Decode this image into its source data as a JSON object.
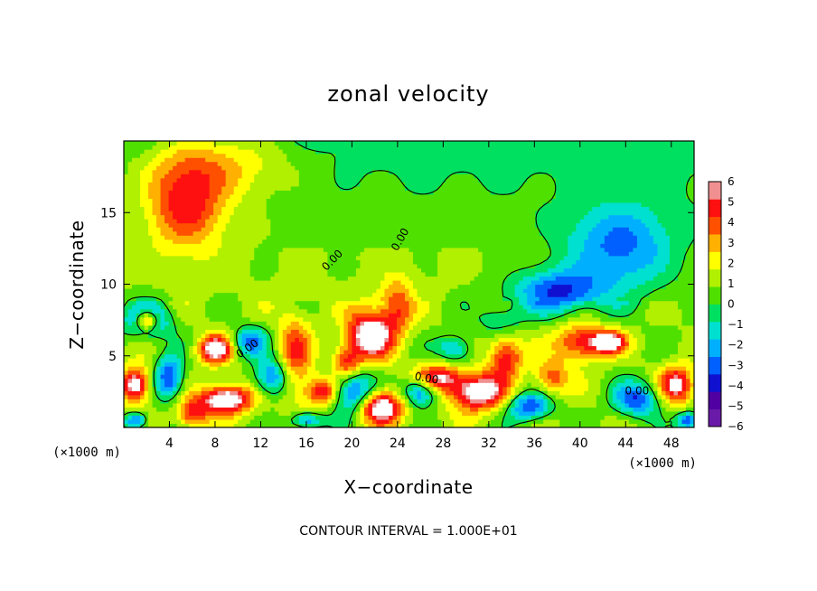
{
  "chart_data": {
    "type": "heatmap",
    "title": "zonal velocity",
    "xlabel": "X−coordinate",
    "ylabel": "Z−coordinate",
    "x_unit_label": "(×1000 m)",
    "y_unit_label": "(×1000 m)",
    "xlim": [
      0,
      50
    ],
    "ylim": [
      0,
      20
    ],
    "x_ticks": [
      4,
      8,
      12,
      16,
      20,
      24,
      28,
      32,
      36,
      40,
      44,
      48
    ],
    "y_ticks": [
      5,
      10,
      15
    ],
    "colorbar": {
      "min": -6,
      "max": 6,
      "ticks": [
        6,
        5,
        4,
        3,
        2,
        1,
        0,
        -1,
        -2,
        -3,
        -4,
        -5,
        -6
      ],
      "tick_labels": [
        "6",
        "5",
        "4",
        "3",
        "2",
        "1",
        "0",
        "−1",
        "−2",
        "−3",
        "−4",
        "−5",
        "−6"
      ],
      "colors": [
        "#6a1aa8",
        "#5000a0",
        "#1010d0",
        "#0060ff",
        "#00b0ff",
        "#00e0d0",
        "#00e060",
        "#50e000",
        "#b0f000",
        "#ffff00",
        "#ffb000",
        "#ff5000",
        "#ff1010",
        "#f09090"
      ]
    },
    "contour_label": "0.00",
    "footer": "CONTOUR INTERVAL = 1.000E+01",
    "features": [
      {
        "x": 5.5,
        "z": 15.5,
        "value": 4.5,
        "rx": 3.5,
        "rz": 3.0
      },
      {
        "x": 8.0,
        "z": 18.5,
        "value": 3.0,
        "rx": 7.0,
        "rz": 2.5
      },
      {
        "x": 43.5,
        "z": 12.5,
        "value": -4.0,
        "rx": 5.0,
        "rz": 3.0
      },
      {
        "x": 38.0,
        "z": 9.5,
        "value": -4.5,
        "rx": 4.0,
        "rz": 1.5
      },
      {
        "x": 2.0,
        "z": 7.5,
        "value": -5.0,
        "rx": 2.0,
        "rz": 1.2
      },
      {
        "x": 2.0,
        "z": 7.5,
        "value": 7.0,
        "rx": 1.0,
        "rz": 0.7
      },
      {
        "x": 8.0,
        "z": 5.5,
        "value": 6.0,
        "rx": 1.5,
        "rz": 1.0
      },
      {
        "x": 9.0,
        "z": 2.0,
        "value": 7.0,
        "rx": 2.2,
        "rz": 1.0
      },
      {
        "x": 11.0,
        "z": 6.0,
        "value": -4.0,
        "rx": 1.5,
        "rz": 1.0
      },
      {
        "x": 13.0,
        "z": 3.5,
        "value": -4.5,
        "rx": 1.5,
        "rz": 1.3
      },
      {
        "x": 15.0,
        "z": 5.0,
        "value": 3.5,
        "rx": 1.5,
        "rz": 3.0
      },
      {
        "x": 17.5,
        "z": 2.5,
        "value": 5.0,
        "rx": 1.5,
        "rz": 1.0
      },
      {
        "x": 20.0,
        "z": 2.5,
        "value": -5.5,
        "rx": 2.0,
        "rz": 1.5
      },
      {
        "x": 21.5,
        "z": 6.5,
        "value": 6.5,
        "rx": 2.0,
        "rz": 1.8
      },
      {
        "x": 22.5,
        "z": 1.5,
        "value": 7.0,
        "rx": 2.0,
        "rz": 1.2
      },
      {
        "x": 19.5,
        "z": 4.5,
        "value": 4.0,
        "rx": 1.2,
        "rz": 1.2
      },
      {
        "x": 24.0,
        "z": 8.5,
        "value": 3.5,
        "rx": 1.5,
        "rz": 2.0
      },
      {
        "x": 27.5,
        "z": 3.5,
        "value": 5.0,
        "rx": 2.0,
        "rz": 1.0
      },
      {
        "x": 26.0,
        "z": 2.5,
        "value": -5.0,
        "rx": 1.5,
        "rz": 1.0
      },
      {
        "x": 29.0,
        "z": 5.5,
        "value": -3.5,
        "rx": 1.5,
        "rz": 1.0
      },
      {
        "x": 31.0,
        "z": 2.5,
        "value": 6.5,
        "rx": 2.5,
        "rz": 1.3
      },
      {
        "x": 33.5,
        "z": 5.0,
        "value": 4.5,
        "rx": 1.5,
        "rz": 1.5
      },
      {
        "x": 35.5,
        "z": 1.5,
        "value": -4.5,
        "rx": 2.0,
        "rz": 1.0
      },
      {
        "x": 37.5,
        "z": 3.5,
        "value": 3.5,
        "rx": 1.5,
        "rz": 1.2
      },
      {
        "x": 40.0,
        "z": 6.0,
        "value": 4.5,
        "rx": 2.0,
        "rz": 1.3
      },
      {
        "x": 42.5,
        "z": 6.0,
        "value": 6.0,
        "rx": 1.5,
        "rz": 0.8
      },
      {
        "x": 45.0,
        "z": 2.0,
        "value": -4.5,
        "rx": 2.0,
        "rz": 1.2
      },
      {
        "x": 48.5,
        "z": 3.0,
        "value": 5.5,
        "rx": 1.5,
        "rz": 1.3
      },
      {
        "x": 49.5,
        "z": 0.5,
        "value": -5.0,
        "rx": 1.0,
        "rz": 0.6
      },
      {
        "x": 1.0,
        "z": 3.0,
        "value": 6.5,
        "rx": 1.2,
        "rz": 1.2
      },
      {
        "x": 4.0,
        "z": 3.5,
        "value": -5.0,
        "rx": 1.2,
        "rz": 1.5
      },
      {
        "x": 6.0,
        "z": 1.0,
        "value": 4.0,
        "rx": 1.5,
        "rz": 1.0
      },
      {
        "x": 1.0,
        "z": 0.5,
        "value": -4.5,
        "rx": 1.0,
        "rz": 0.6
      },
      {
        "x": 16.0,
        "z": 0.5,
        "value": -4.0,
        "rx": 1.5,
        "rz": 0.6
      },
      {
        "x": 33.0,
        "z": 7.5,
        "value": -2.0,
        "rx": 2.0,
        "rz": 1.0
      }
    ]
  }
}
